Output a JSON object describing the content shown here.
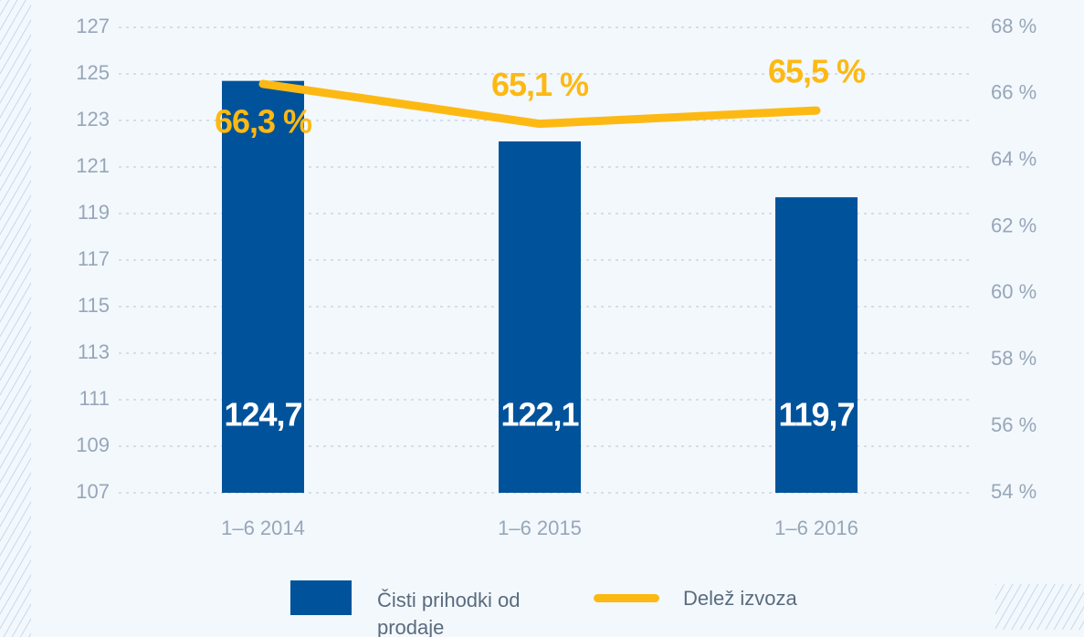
{
  "chart_data": {
    "type": "bar",
    "categories": [
      "1–6 2014",
      "1–6 2015",
      "1–6 2016"
    ],
    "series": [
      {
        "name": "Čisti prihodki od prodaje",
        "type": "bar",
        "color": "#00539b",
        "values": [
          124.7,
          122.1,
          119.7
        ],
        "value_labels": [
          "124,7",
          "122,1",
          "119,7"
        ]
      },
      {
        "name": "Delež izvoza",
        "type": "line",
        "axis": "y2",
        "color": "#fdb913",
        "values": [
          66.3,
          65.1,
          65.5
        ],
        "value_labels": [
          "66,3 %",
          "65,1 %",
          "65,5 %"
        ]
      }
    ],
    "ylim": [
      107,
      127
    ],
    "yticks": [
      107,
      109,
      111,
      113,
      115,
      117,
      119,
      121,
      123,
      125,
      127
    ],
    "y2lim": [
      54,
      68
    ],
    "y2ticks": [
      {
        "value": 54,
        "label": "54 %"
      },
      {
        "value": 56,
        "label": "56 %"
      },
      {
        "value": 58,
        "label": "58 %"
      },
      {
        "value": 60,
        "label": "60 %"
      },
      {
        "value": 62,
        "label": "62 %"
      },
      {
        "value": 64,
        "label": "64 %"
      },
      {
        "value": 66,
        "label": "66 %"
      },
      {
        "value": 68,
        "label": "68 %"
      }
    ],
    "grid": true
  }
}
